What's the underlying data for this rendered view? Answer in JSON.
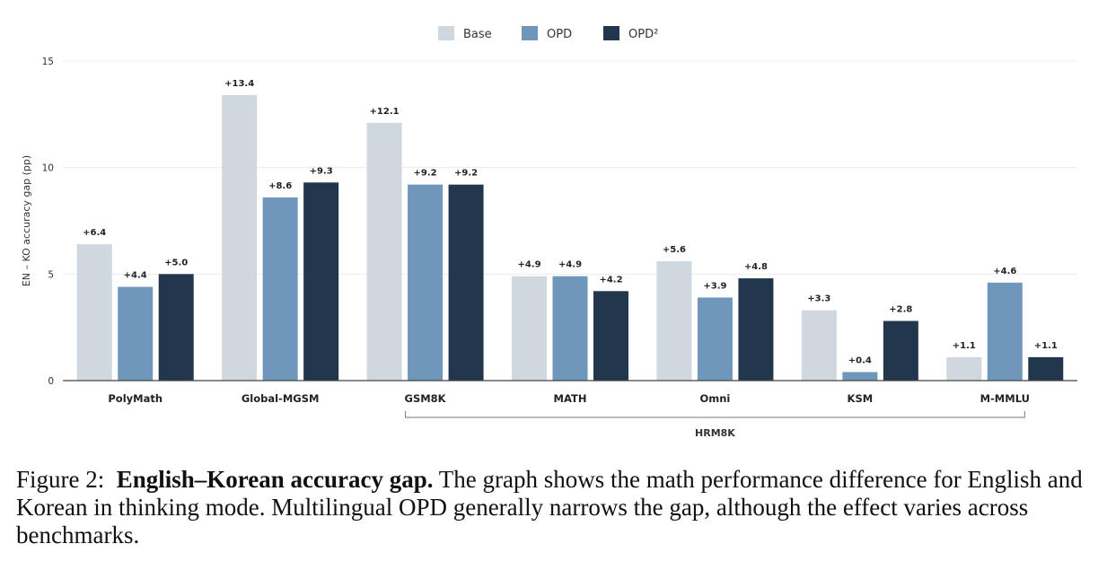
{
  "chart_data": {
    "type": "bar",
    "ylabel": "EN – KO accuracy gap (pp)",
    "ylim": [
      0,
      15
    ],
    "yticks": [
      0,
      5,
      10,
      15
    ],
    "grid": true,
    "legend_position": "top-center",
    "categories": [
      "PolyMath",
      "Global-MGSM",
      "GSM8K",
      "MATH",
      "Omni",
      "KSM",
      "M-MMLU"
    ],
    "series": [
      {
        "name": "Base",
        "color": "#cfd8df",
        "values": [
          6.4,
          13.4,
          12.1,
          4.9,
          5.6,
          3.3,
          1.1
        ],
        "labels": [
          "+6.4",
          "+13.4",
          "+12.1",
          "+4.9",
          "+5.6",
          "+3.3",
          "+1.1"
        ]
      },
      {
        "name": "OPD",
        "color": "#6f97bb",
        "values": [
          4.4,
          8.6,
          9.2,
          4.9,
          3.9,
          0.4,
          4.6
        ],
        "labels": [
          "+4.4",
          "+8.6",
          "+9.2",
          "+4.9",
          "+3.9",
          "+0.4",
          "+4.6"
        ]
      },
      {
        "name": "OPD²",
        "color": "#22364d",
        "values": [
          5.0,
          9.3,
          9.2,
          4.2,
          4.8,
          2.8,
          1.1
        ],
        "labels": [
          "+5.0",
          "+9.3",
          "+9.2",
          "+4.2",
          "+4.8",
          "+2.8",
          "+1.1"
        ]
      }
    ],
    "group_bracket": {
      "label": "HRM8K",
      "from": "GSM8K",
      "to": "M-MMLU"
    }
  },
  "caption": {
    "prefix": "Figure 2:",
    "title": "English–Korean accuracy gap.",
    "body": "The graph shows the math performance difference for English and Korean in thinking mode. Multilingual OPD generally narrows the gap, although the effect varies across benchmarks."
  }
}
